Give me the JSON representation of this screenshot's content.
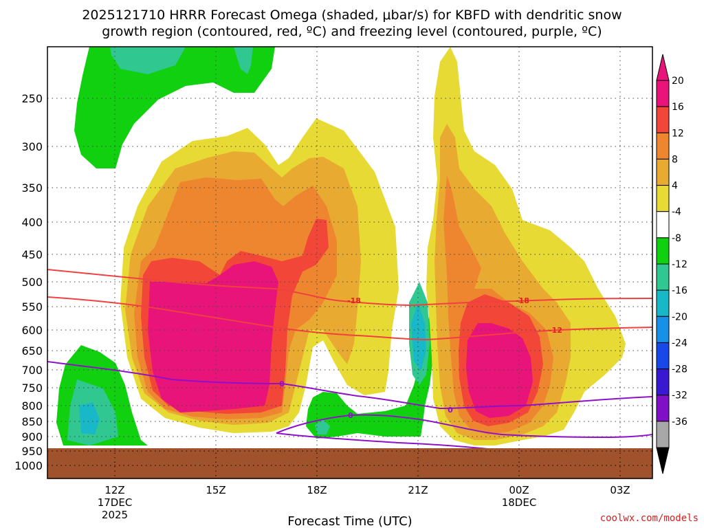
{
  "chart_data": {
    "type": "area",
    "title_line1": "2025121710 HRRR Forecast Omega (shaded, μbar/s) for KBFD with dendritic snow",
    "title_line2": "growth region (contoured, red, ºC) and freezing level (contoured, purple, ºC)",
    "xlabel": "Forecast Time (UTC)",
    "ylabel": "",
    "y_ticks": [
      "250",
      "300",
      "350",
      "400",
      "450",
      "500",
      "550",
      "600",
      "650",
      "700",
      "750",
      "800",
      "850",
      "900",
      "950",
      "1000"
    ],
    "x_ticks": [
      {
        "line1": "12Z",
        "line2": "17DEC",
        "line3": "2025"
      },
      {
        "line1": "15Z",
        "line2": "",
        "line3": ""
      },
      {
        "line1": "18Z",
        "line2": "",
        "line3": ""
      },
      {
        "line1": "21Z",
        "line2": "",
        "line3": ""
      },
      {
        "line1": "00Z",
        "line2": "18DEC",
        "line3": ""
      },
      {
        "line1": "03Z",
        "line2": "",
        "line3": ""
      }
    ],
    "colorbar": {
      "labels": [
        "20",
        "16",
        "12",
        "8",
        "4",
        "-4",
        "-8",
        "-12",
        "-16",
        "-20",
        "-24",
        "-28",
        "-32",
        "-36"
      ],
      "colors": [
        "#e8147a",
        "#f24638",
        "#ee8630",
        "#e8aa30",
        "#e8da34",
        "#ffffff",
        "#10d010",
        "#30c890",
        "#18b8c8",
        "#1890e8",
        "#1848e8",
        "#3818d0",
        "#8010c8",
        "#a8a8a8"
      ],
      "top_arrow_color": "#e8147a",
      "bottom_arrow_color": "#000000"
    },
    "contours": {
      "dendritic_snow_growth": {
        "color": "#f04040",
        "labels": [
          "-18",
          "-18",
          "-12"
        ]
      },
      "freezing_level": {
        "color": "#9010c8",
        "labels": [
          "0",
          "0",
          "0"
        ]
      }
    },
    "ground_color": "#a0522d",
    "grid": true
  },
  "credit": "coolwx.com/models"
}
